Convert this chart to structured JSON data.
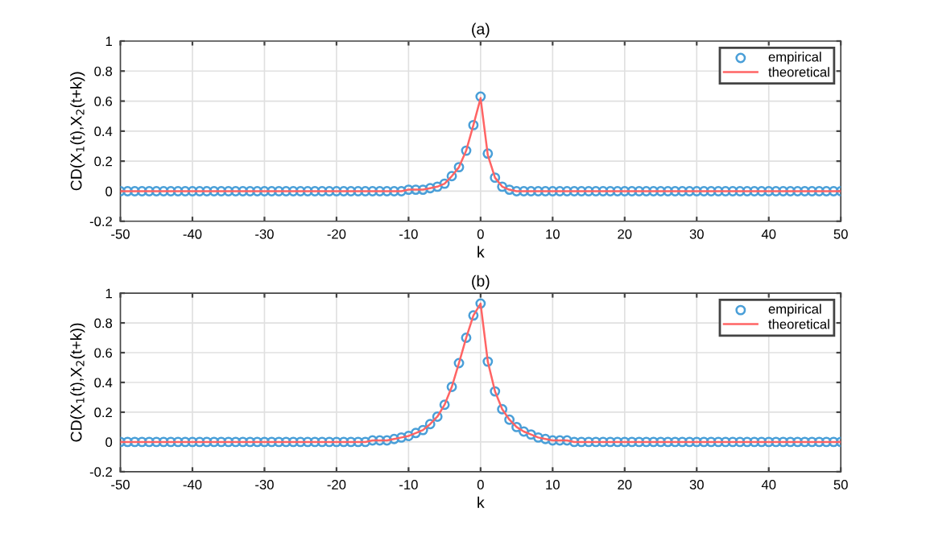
{
  "chart_data": [
    {
      "type": "line",
      "title": "(a)",
      "xlabel": "k",
      "ylabel": "CD(X$_{1}$(t),X$_{2}$(t+k))",
      "x": [
        -50,
        -49,
        -48,
        -47,
        -46,
        -45,
        -44,
        -43,
        -42,
        -41,
        -40,
        -39,
        -38,
        -37,
        -36,
        -35,
        -34,
        -33,
        -32,
        -31,
        -30,
        -29,
        -28,
        -27,
        -26,
        -25,
        -24,
        -23,
        -22,
        -21,
        -20,
        -19,
        -18,
        -17,
        -16,
        -15,
        -14,
        -13,
        -12,
        -11,
        -10,
        -9,
        -8,
        -7,
        -6,
        -5,
        -4,
        -3,
        -2,
        -1,
        0,
        1,
        2,
        3,
        4,
        5,
        6,
        7,
        8,
        9,
        10,
        11,
        12,
        13,
        14,
        15,
        16,
        17,
        18,
        19,
        20,
        21,
        22,
        23,
        24,
        25,
        26,
        27,
        28,
        29,
        30,
        31,
        32,
        33,
        34,
        35,
        36,
        37,
        38,
        39,
        40,
        41,
        42,
        43,
        44,
        45,
        46,
        47,
        48,
        49,
        50
      ],
      "series": [
        {
          "name": "empirical",
          "type": "scatter",
          "marker": "circle",
          "color": "#4a9fd8",
          "values": [
            0,
            0,
            0,
            0,
            0,
            0,
            0,
            0,
            0,
            0,
            0,
            0,
            0,
            0,
            0,
            0,
            0,
            0,
            0,
            0,
            0,
            0,
            0,
            0,
            0,
            0,
            0,
            0,
            0,
            0,
            0,
            0,
            0,
            0,
            0,
            0,
            0,
            0,
            0,
            0,
            0.01,
            0.01,
            0.01,
            0.02,
            0.03,
            0.05,
            0.1,
            0.16,
            0.27,
            0.44,
            0.63,
            0.25,
            0.09,
            0.03,
            0.01,
            0,
            0,
            0,
            0,
            0,
            0,
            0,
            0,
            0,
            0,
            0,
            0,
            0,
            0,
            0,
            0,
            0,
            0,
            0,
            0,
            0,
            0,
            0,
            0,
            0,
            0,
            0,
            0,
            0,
            0,
            0,
            0,
            0,
            0,
            0,
            0,
            0,
            0,
            0,
            0,
            0,
            0,
            0,
            0,
            0,
            0
          ]
        },
        {
          "name": "theoretical",
          "type": "line",
          "marker": "none",
          "line_style": "solid",
          "color": "#ff6464",
          "values": [
            0,
            0,
            0,
            0,
            0,
            0,
            0,
            0,
            0,
            0,
            0,
            0,
            0,
            0,
            0,
            0,
            0,
            0,
            0,
            0,
            0,
            0,
            0,
            0,
            0,
            0,
            0,
            0,
            0,
            0,
            0,
            0,
            0,
            0,
            0,
            0,
            0,
            0,
            0,
            0,
            0.01,
            0.01,
            0.01,
            0.02,
            0.03,
            0.05,
            0.1,
            0.16,
            0.27,
            0.44,
            0.62,
            0.24,
            0.09,
            0.03,
            0.01,
            0,
            0,
            0,
            0,
            0,
            0,
            0,
            0,
            0,
            0,
            0,
            0,
            0,
            0,
            0,
            0,
            0,
            0,
            0,
            0,
            0,
            0,
            0,
            0,
            0,
            0,
            0,
            0,
            0,
            0,
            0,
            0,
            0,
            0,
            0,
            0,
            0,
            0,
            0,
            0,
            0,
            0,
            0,
            0,
            0,
            0
          ]
        }
      ],
      "xlim": [
        -50,
        50
      ],
      "xticks": [
        -50,
        -40,
        -30,
        -20,
        -10,
        0,
        10,
        20,
        30,
        40,
        50
      ],
      "ylim": [
        -0.2,
        1
      ],
      "yticks": [
        -0.2,
        0,
        0.2,
        0.4,
        0.6,
        0.8,
        1
      ],
      "grid": true,
      "legend": "top right"
    },
    {
      "type": "line",
      "title": "(b)",
      "xlabel": "k",
      "ylabel": "CD(X$_{1}$(t),X$_{2}$(t+k))",
      "x": [
        -50,
        -49,
        -48,
        -47,
        -46,
        -45,
        -44,
        -43,
        -42,
        -41,
        -40,
        -39,
        -38,
        -37,
        -36,
        -35,
        -34,
        -33,
        -32,
        -31,
        -30,
        -29,
        -28,
        -27,
        -26,
        -25,
        -24,
        -23,
        -22,
        -21,
        -20,
        -19,
        -18,
        -17,
        -16,
        -15,
        -14,
        -13,
        -12,
        -11,
        -10,
        -9,
        -8,
        -7,
        -6,
        -5,
        -4,
        -3,
        -2,
        -1,
        0,
        1,
        2,
        3,
        4,
        5,
        6,
        7,
        8,
        9,
        10,
        11,
        12,
        13,
        14,
        15,
        16,
        17,
        18,
        19,
        20,
        21,
        22,
        23,
        24,
        25,
        26,
        27,
        28,
        29,
        30,
        31,
        32,
        33,
        34,
        35,
        36,
        37,
        38,
        39,
        40,
        41,
        42,
        43,
        44,
        45,
        46,
        47,
        48,
        49,
        50
      ],
      "series": [
        {
          "name": "empirical",
          "type": "scatter",
          "marker": "circle",
          "color": "#4a9fd8",
          "values": [
            0,
            0,
            0,
            0,
            0,
            0,
            0,
            0,
            0,
            0,
            0,
            0,
            0,
            0,
            0,
            0,
            0,
            0,
            0,
            0,
            0,
            0,
            0,
            0,
            0,
            0,
            0,
            0,
            0,
            0,
            0,
            0,
            0,
            0,
            0,
            0.01,
            0.01,
            0.01,
            0.02,
            0.03,
            0.04,
            0.06,
            0.08,
            0.12,
            0.17,
            0.25,
            0.37,
            0.53,
            0.7,
            0.85,
            0.93,
            0.54,
            0.34,
            0.22,
            0.15,
            0.1,
            0.07,
            0.05,
            0.03,
            0.02,
            0.01,
            0.01,
            0.01,
            0,
            0,
            0,
            0,
            0,
            0,
            0,
            0,
            0,
            0,
            0,
            0,
            0,
            0,
            0,
            0,
            0,
            0,
            0,
            0,
            0,
            0,
            0,
            0,
            0,
            0,
            0,
            0,
            0,
            0,
            0,
            0,
            0,
            0,
            0,
            0,
            0,
            0
          ]
        },
        {
          "name": "theoretical",
          "type": "line",
          "marker": "none",
          "line_style": "solid",
          "color": "#ff6464",
          "values": [
            0,
            0,
            0,
            0,
            0,
            0,
            0,
            0,
            0,
            0,
            0,
            0,
            0,
            0,
            0,
            0,
            0,
            0,
            0,
            0,
            0,
            0,
            0,
            0,
            0,
            0,
            0,
            0,
            0,
            0,
            0,
            0,
            0,
            0,
            0,
            0.01,
            0.01,
            0.01,
            0.02,
            0.03,
            0.04,
            0.06,
            0.08,
            0.12,
            0.17,
            0.25,
            0.37,
            0.53,
            0.7,
            0.85,
            0.93,
            0.54,
            0.34,
            0.22,
            0.15,
            0.1,
            0.07,
            0.05,
            0.03,
            0.02,
            0.01,
            0.01,
            0.01,
            0,
            0,
            0,
            0,
            0,
            0,
            0,
            0,
            0,
            0,
            0,
            0,
            0,
            0,
            0,
            0,
            0,
            0,
            0,
            0,
            0,
            0,
            0,
            0,
            0,
            0,
            0,
            0,
            0,
            0,
            0,
            0,
            0,
            0,
            0,
            0,
            0,
            0
          ]
        }
      ],
      "xlim": [
        -50,
        50
      ],
      "xticks": [
        -50,
        -40,
        -30,
        -20,
        -10,
        0,
        10,
        20,
        30,
        40,
        50
      ],
      "ylim": [
        -0.2,
        1
      ],
      "yticks": [
        -0.2,
        0,
        0.2,
        0.4,
        0.6,
        0.8,
        1
      ],
      "grid": true,
      "legend": "top right"
    }
  ]
}
